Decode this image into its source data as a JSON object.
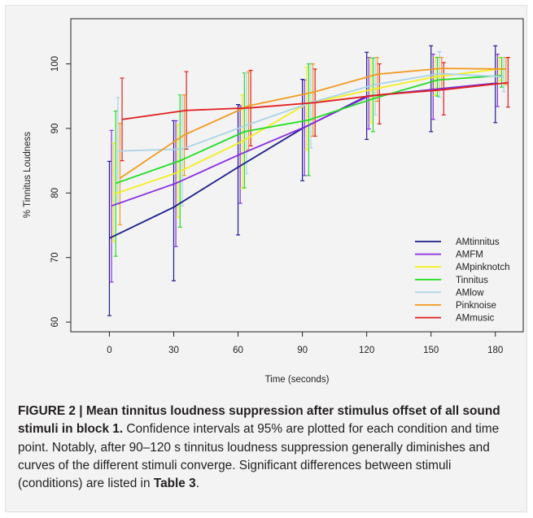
{
  "chart_data": {
    "type": "line",
    "title": "",
    "xlabel": "Time (seconds)",
    "ylabel": "% Tinnitus Loudness",
    "x": [
      0,
      30,
      60,
      90,
      120,
      150,
      180
    ],
    "x_ticks": [
      "0",
      "30",
      "60",
      "90",
      "120",
      "150",
      "180"
    ],
    "y_ticks": [
      "60",
      "70",
      "80",
      "90",
      "100"
    ],
    "xlim": [
      -18,
      193
    ],
    "ylim": [
      58.5,
      107
    ],
    "grid": false,
    "legend_position": "bottom-right",
    "error_bars": "95% confidence intervals",
    "series": [
      {
        "name": "AMtinnitus",
        "color": "#1d1d8c",
        "offset": 0,
        "values": [
          73.0,
          77.8,
          84.0,
          90.0,
          95.0,
          96.0,
          97.0
        ],
        "lower": [
          61.0,
          66.4,
          73.5,
          81.9,
          88.3,
          89.5,
          90.9
        ],
        "upper": [
          84.9,
          91.2,
          93.7,
          97.6,
          101.8,
          102.8,
          102.8
        ]
      },
      {
        "name": "AMFM",
        "color": "#8a2be2",
        "offset": 1,
        "values": [
          78.0,
          81.5,
          86.0,
          90.2,
          95.0,
          96.0,
          97.0
        ],
        "lower": [
          66.2,
          71.7,
          78.4,
          82.7,
          89.9,
          91.4,
          93.4
        ],
        "upper": [
          89.7,
          91.2,
          93.5,
          97.5,
          101.0,
          101.5,
          101.5
        ]
      },
      {
        "name": "AMpinknotch",
        "color": "#f4ee1c",
        "offset": 2,
        "values": [
          79.8,
          83.2,
          88.0,
          93.8,
          96.0,
          98.0,
          99.2
        ],
        "lower": [
          72.5,
          76.2,
          80.7,
          86.7,
          90.9,
          95.1,
          97.4
        ],
        "upper": [
          87.7,
          90.6,
          95.2,
          99.5,
          100.9,
          101.0,
          101.0
        ]
      },
      {
        "name": "Tinnitus",
        "color": "#22dd22",
        "offset": 3,
        "values": [
          81.5,
          85.0,
          89.5,
          91.3,
          94.6,
          97.5,
          98.2
        ],
        "lower": [
          70.2,
          74.7,
          80.8,
          82.7,
          89.5,
          95.0,
          96.4
        ],
        "upper": [
          92.7,
          95.2,
          98.6,
          100.0,
          100.9,
          101.0,
          101.0
        ]
      },
      {
        "name": "AMlow",
        "color": "#a9d4e6",
        "offset": 4,
        "values": [
          86.5,
          86.8,
          90.5,
          94.0,
          96.8,
          98.5,
          98.0
        ],
        "lower": [
          78.3,
          78.0,
          83.0,
          87.0,
          92.1,
          94.8,
          95.7
        ],
        "upper": [
          94.8,
          95.2,
          98.6,
          100.1,
          101.0,
          101.9,
          101.0
        ]
      },
      {
        "name": "Pinknoise",
        "color": "#f39a1e",
        "offset": 5,
        "values": [
          82.3,
          89.0,
          93.5,
          95.6,
          98.4,
          99.3,
          99.2
        ],
        "lower": [
          75.1,
          82.7,
          86.7,
          88.8,
          94.2,
          96.0,
          96.8
        ],
        "upper": [
          90.8,
          95.2,
          98.8,
          100.0,
          101.0,
          101.0,
          101.0
        ]
      },
      {
        "name": "AMmusic",
        "color": "#e31d1d",
        "offset": 6,
        "values": [
          91.4,
          92.8,
          93.2,
          94.0,
          95.2,
          96.0,
          97.1
        ],
        "lower": [
          85.0,
          86.8,
          87.3,
          88.8,
          90.7,
          92.1,
          93.3
        ],
        "upper": [
          97.8,
          98.8,
          99.0,
          99.2,
          100.0,
          100.2,
          101.0
        ]
      }
    ]
  },
  "caption": {
    "bold": "FIGURE 2 | Mean tinnitus loudness suppression after stimulus offset of all sound stimuli in block 1.",
    "text": " Confidence intervals at 95% are plotted for each condition and time point. Notably, after 90–120 s tinnitus loudness suppression generally diminishes and curves of the different stimuli converge. Significant differences between stimuli (conditions) are listed in ",
    "table_ref": "Table 3",
    "end": "."
  }
}
